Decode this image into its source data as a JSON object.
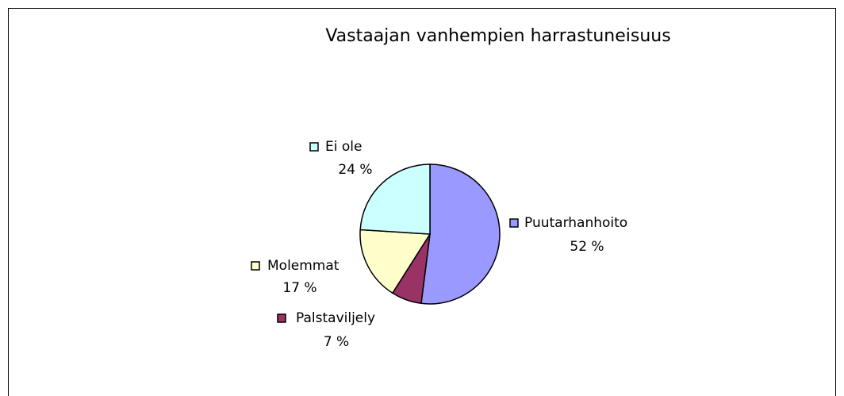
{
  "chart_data": {
    "type": "pie",
    "title": "Vastaajan vanhempien harrastuneisuus",
    "categories": [
      "Puutarhanhoito",
      "Palstaviljely",
      "Molemmat",
      "Ei ole"
    ],
    "values": [
      52,
      7,
      17,
      24
    ],
    "value_labels": [
      "52 %",
      "7 %",
      "17 %",
      "24 %"
    ],
    "colors": [
      "#9999ff",
      "#993366",
      "#ffffcc",
      "#ccffff"
    ]
  }
}
